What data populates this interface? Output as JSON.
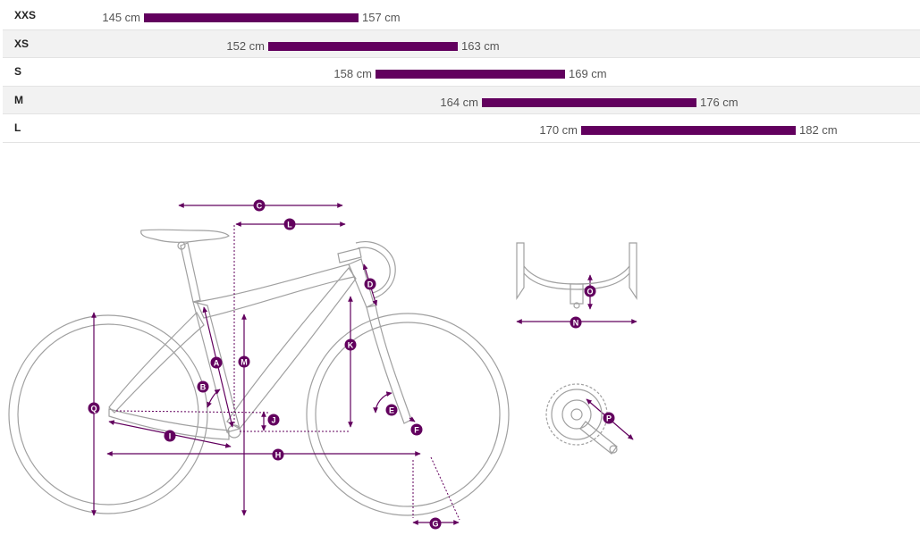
{
  "size_chart": {
    "unit_scale": {
      "min_cm": 145,
      "max_cm": 182
    },
    "rows": [
      {
        "size": "XXS",
        "min": 145,
        "max": 157,
        "min_label": "145 cm",
        "max_label": "157 cm"
      },
      {
        "size": "XS",
        "min": 152,
        "max": 163,
        "min_label": "152 cm",
        "max_label": "163 cm"
      },
      {
        "size": "S",
        "min": 158,
        "max": 169,
        "min_label": "158 cm",
        "max_label": "169 cm"
      },
      {
        "size": "M",
        "min": 164,
        "max": 176,
        "min_label": "164 cm",
        "max_label": "176 cm"
      },
      {
        "size": "L",
        "min": 170,
        "max": 182,
        "min_label": "170 cm",
        "max_label": "182 cm"
      }
    ],
    "bar_color": "#62005e"
  },
  "geometry_labels": {
    "A": "A",
    "B": "B",
    "C": "C",
    "D": "D",
    "E": "E",
    "F": "F",
    "G": "G",
    "H": "H",
    "I": "I",
    "J": "J",
    "K": "K",
    "L": "L",
    "M": "M",
    "N": "N",
    "O": "O",
    "P": "P",
    "Q": "Q"
  },
  "colors": {
    "accent": "#62005e",
    "line": "#9a9a9a"
  },
  "icons": [
    "bike-frame-icon",
    "handlebar-icon",
    "crankset-icon"
  ]
}
